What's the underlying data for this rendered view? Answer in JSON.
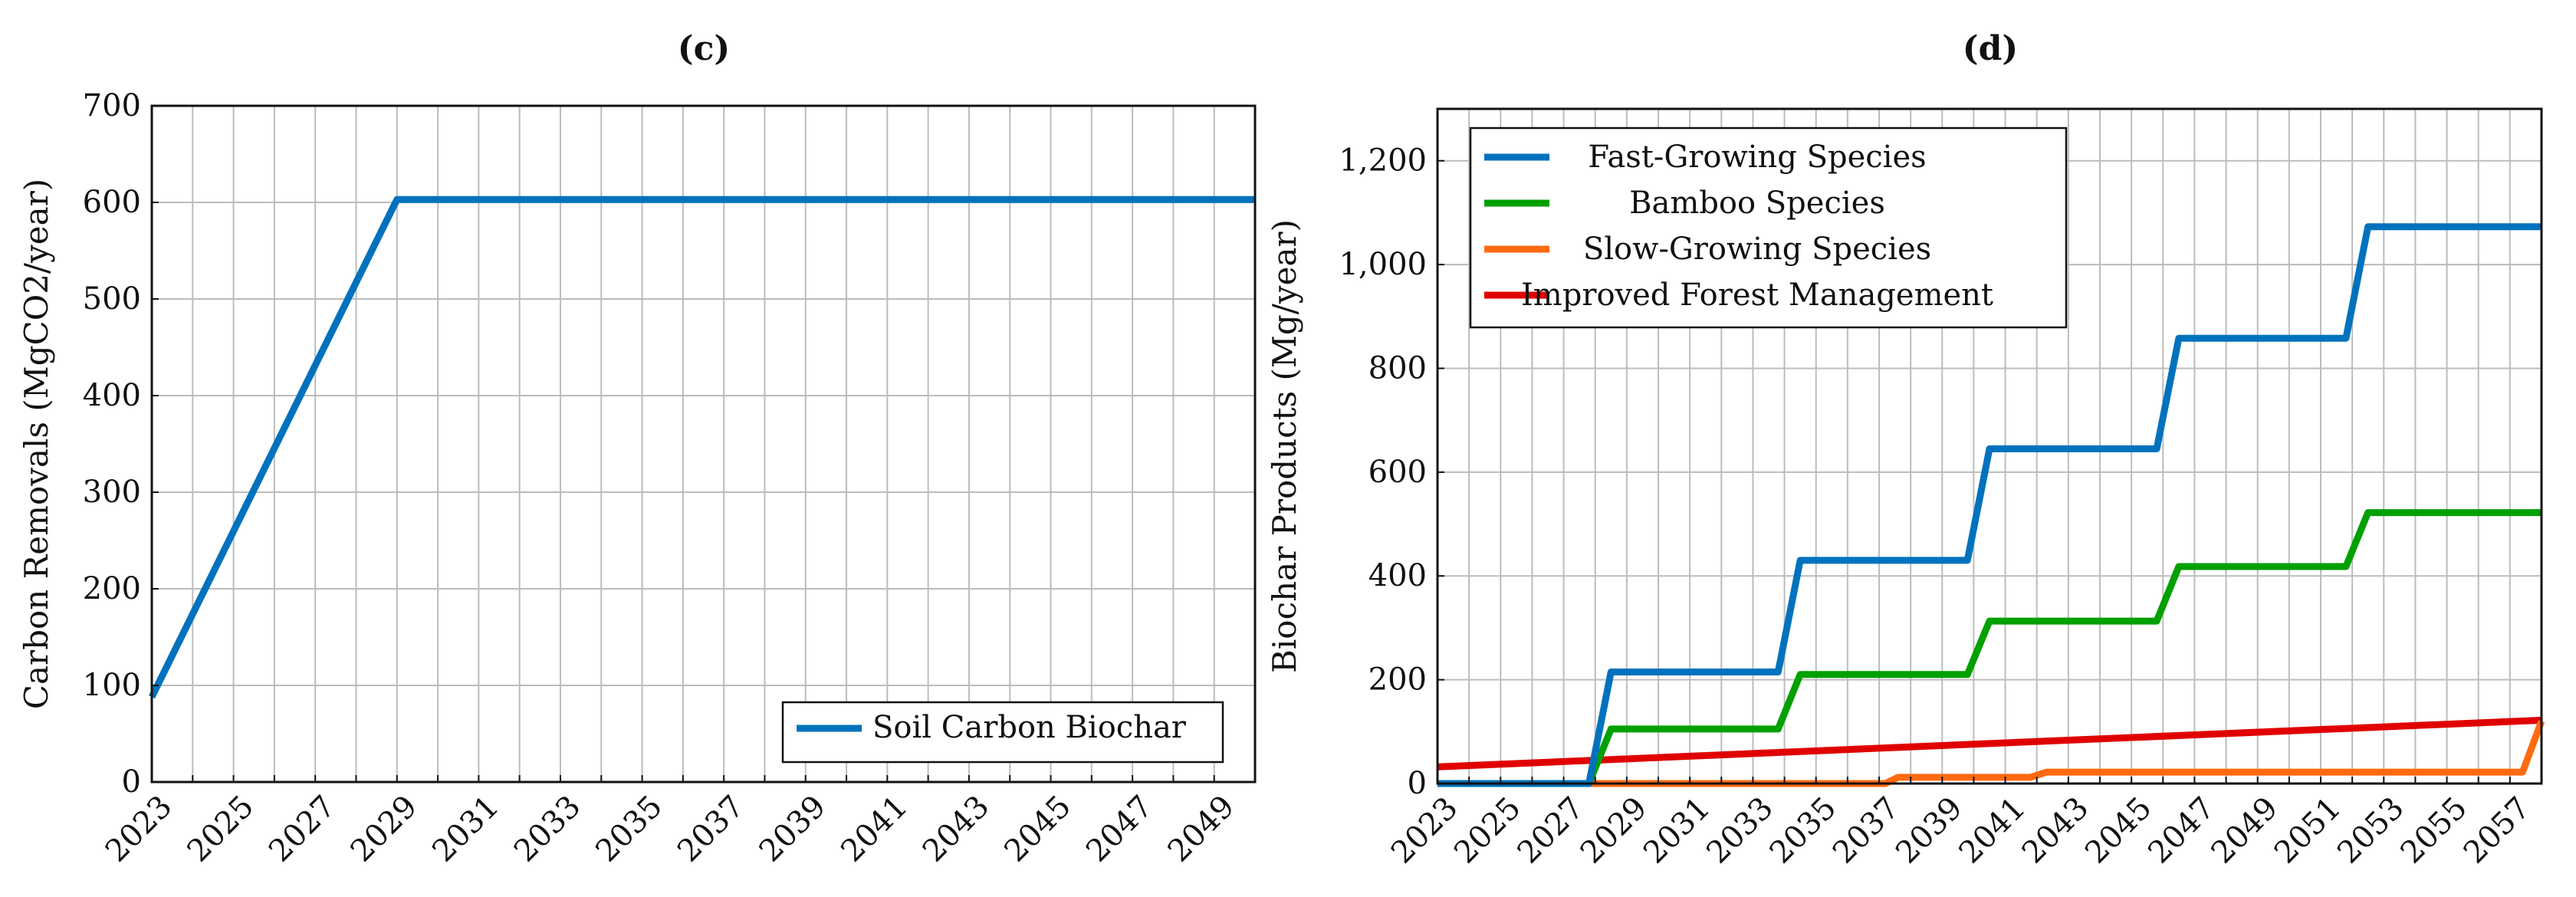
{
  "chart_data": [
    {
      "panel": "(c)",
      "type": "line",
      "title": "",
      "xlabel": "",
      "ylabel": "Carbon Removals (MgCO2/year)",
      "x_tick_labels": [
        "2023",
        "2025",
        "2027",
        "2029",
        "2031",
        "2033",
        "2035",
        "2037",
        "2039",
        "2041",
        "2043",
        "2045",
        "2047",
        "2049"
      ],
      "y_tick_labels": [
        "0",
        "100",
        "200",
        "300",
        "400",
        "500",
        "600",
        "700"
      ],
      "xlim": [
        2023,
        2050
      ],
      "ylim": [
        0,
        700
      ],
      "grid": true,
      "legend_position": "bottom-right",
      "series": [
        {
          "name": "Soil Carbon Biochar",
          "color": "#0072BD",
          "x": [
            2023,
            2029,
            2050
          ],
          "y": [
            88,
            603,
            603
          ]
        }
      ]
    },
    {
      "panel": "(d)",
      "type": "line",
      "title": "",
      "xlabel": "",
      "ylabel": "Biochar Products (Mg/year)",
      "x_tick_labels": [
        "2023",
        "2025",
        "2027",
        "2029",
        "2031",
        "2033",
        "2035",
        "2037",
        "2039",
        "2041",
        "2043",
        "2045",
        "2047",
        "2049",
        "2051",
        "2053",
        "2055",
        "2057"
      ],
      "y_tick_labels": [
        "0",
        "200",
        "400",
        "600",
        "800",
        "1,000",
        "1,200"
      ],
      "xlim": [
        2023,
        2058
      ],
      "ylim": [
        0,
        1300
      ],
      "grid": true,
      "legend_position": "top-left",
      "series": [
        {
          "name": "Fast-Growing Species",
          "color": "#0072BD",
          "x": [
            2023,
            2027.8,
            2028.5,
            2033.8,
            2034.5,
            2039.8,
            2040.5,
            2045.8,
            2046.5,
            2051.8,
            2052.5,
            2058
          ],
          "y": [
            0,
            0,
            215,
            215,
            430,
            430,
            645,
            645,
            858,
            858,
            1073,
            1073
          ]
        },
        {
          "name": "Bamboo Species",
          "color": "#00A000",
          "x": [
            2023,
            2027.8,
            2028.5,
            2033.8,
            2034.5,
            2039.8,
            2040.5,
            2045.8,
            2046.5,
            2051.8,
            2052.5,
            2058
          ],
          "y": [
            0,
            0,
            105,
            105,
            210,
            210,
            313,
            313,
            418,
            418,
            522,
            522
          ]
        },
        {
          "name": "Slow-Growing Species",
          "color": "#FF6A10",
          "x": [
            2023,
            2037.2,
            2037.6,
            2041.8,
            2042.3,
            2057.4,
            2058
          ],
          "y": [
            0,
            0,
            12,
            12,
            22,
            22,
            120
          ]
        },
        {
          "name": "Improved Forest Management",
          "color": "#E00000",
          "x": [
            2023,
            2058
          ],
          "y": [
            32,
            122
          ]
        }
      ]
    }
  ]
}
